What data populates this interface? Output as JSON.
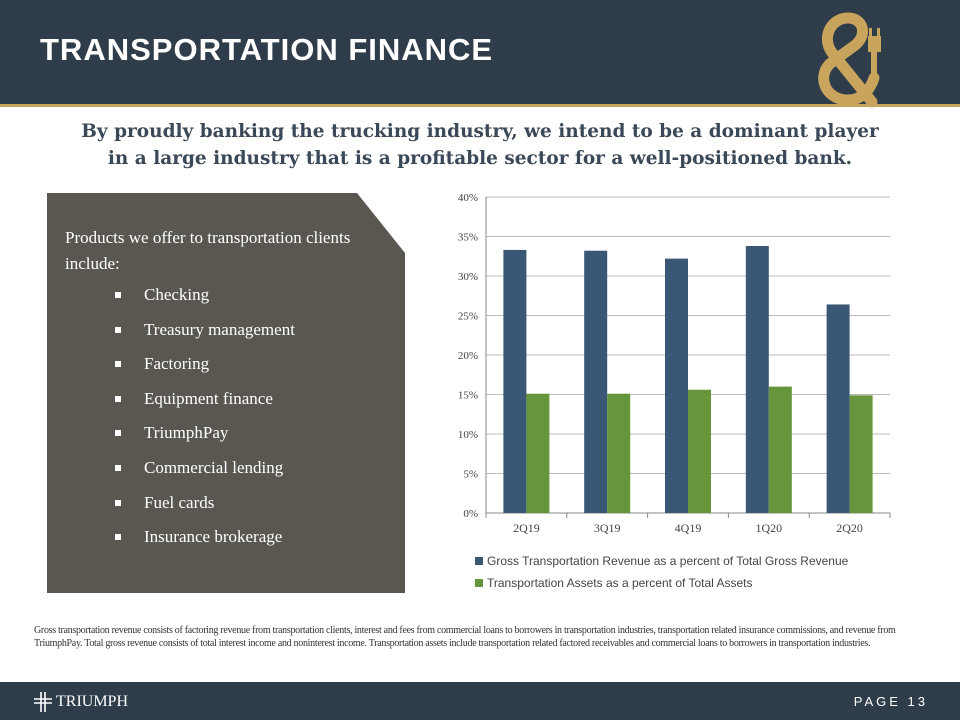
{
  "header": {
    "title": "TRANSPORTATION FINANCE",
    "logo": "ampersand-plug-logo"
  },
  "subtitle": [
    "By proudly banking the trucking industry, we intend to be a dominant player",
    "in a large industry that is a profitable sector for a well-positioned  bank."
  ],
  "panel": {
    "intro": "Products we offer to transportation clients include:",
    "items": [
      "Checking",
      "Treasury management",
      "Factoring",
      "Equipment finance",
      "TriumphPay",
      "Commercial lending",
      "Fuel cards",
      "Insurance brokerage"
    ]
  },
  "chart_data": {
    "type": "bar",
    "categories": [
      "2Q19",
      "3Q19",
      "4Q19",
      "1Q20",
      "2Q20"
    ],
    "series": [
      {
        "name": "Gross Transportation Revenue as a percent of Total Gross Revenue",
        "values": [
          33.3,
          33.2,
          32.2,
          33.8,
          26.4
        ],
        "color": "#3a5875"
      },
      {
        "name": "Transportation Assets as a percent of Total Assets",
        "values": [
          15.1,
          15.1,
          15.6,
          16.0,
          14.9
        ],
        "color": "#66953b"
      }
    ],
    "ylim": [
      0,
      40
    ],
    "yticks": [
      "0%",
      "5%",
      "10%",
      "15%",
      "20%",
      "25%",
      "30%",
      "35%",
      "40%"
    ],
    "grid": true,
    "legend": "bottom"
  },
  "footnote": "Gross transportation revenue consists of factoring revenue from transportation clients, interest and fees from commercial loans to borrowers in transportation industries, transportation related insurance commissions, and revenue from TriumphPay. Total gross revenue consists of total interest income and noninterest income. Transportation assets include transportation related factored receivables and commercial loans to borrowers in transportation industries.",
  "footer": {
    "brand": "TRIUMPH",
    "page": "PAGE 13"
  }
}
